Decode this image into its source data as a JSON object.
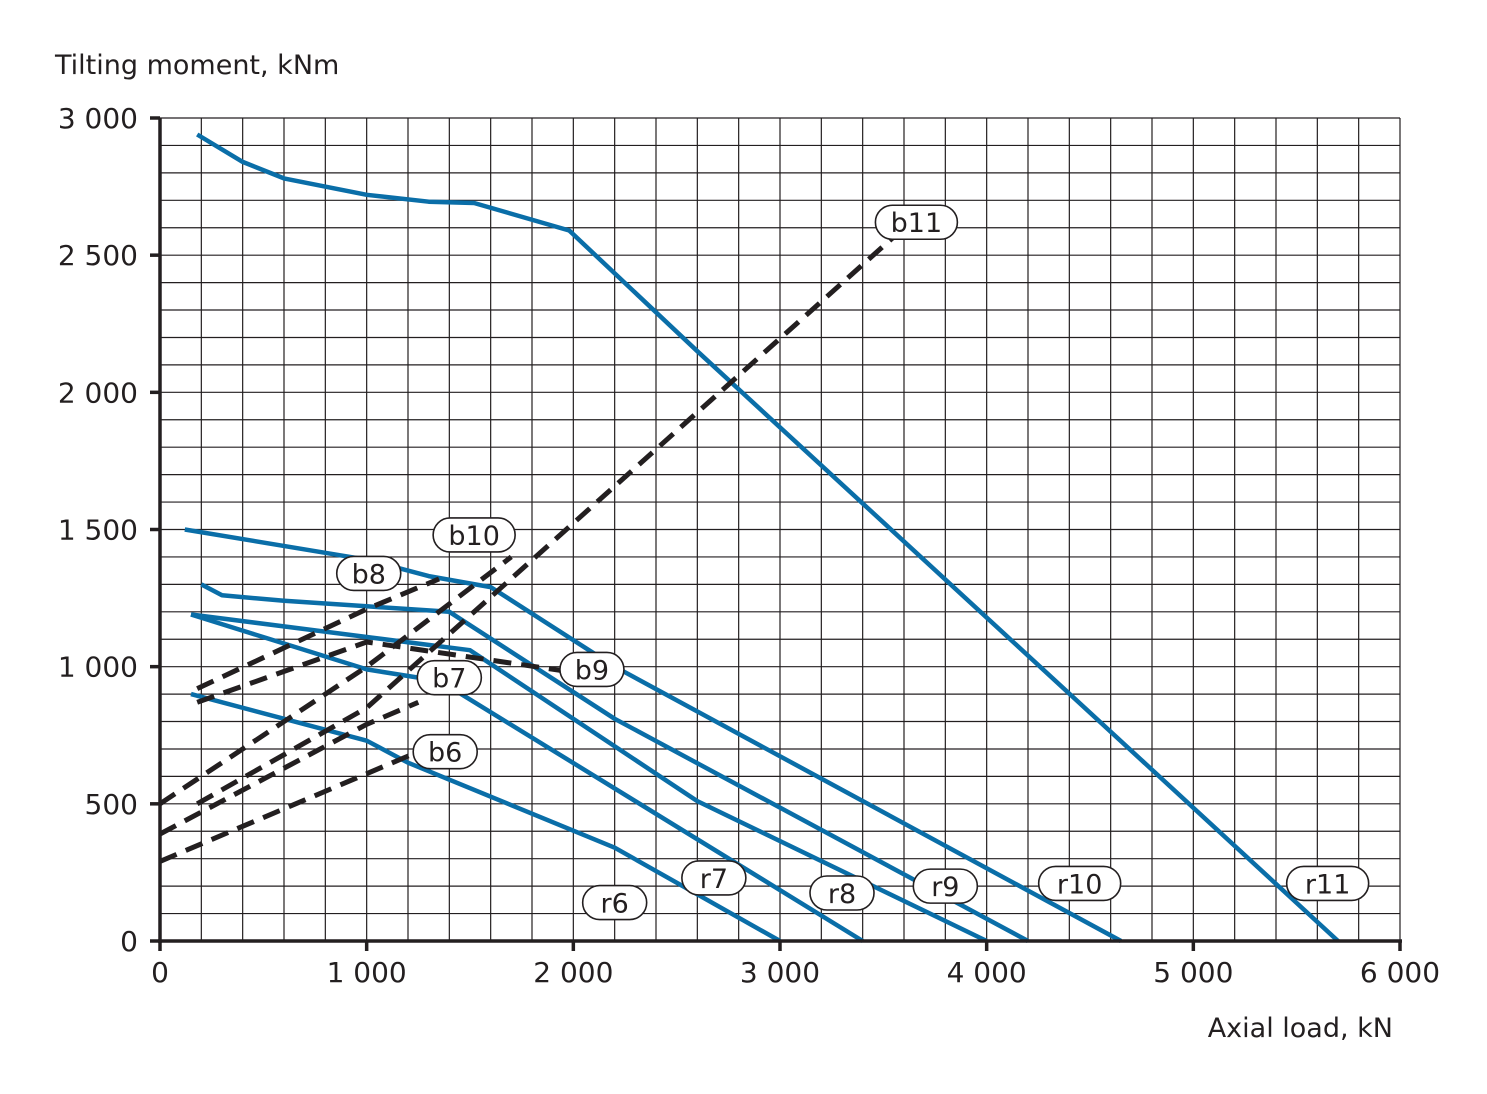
{
  "chart_data": {
    "type": "line",
    "xlabel": "Axial load, kN",
    "ylabel": "Tilting moment, kNm",
    "xlim": [
      0,
      6000
    ],
    "ylim": [
      0,
      3000
    ],
    "x_ticks": [
      0,
      1000,
      2000,
      3000,
      4000,
      5000,
      6000
    ],
    "x_tick_labels": [
      "0",
      "1 000",
      "2 000",
      "3 000",
      "4 000",
      "5 000",
      "6 000"
    ],
    "y_ticks": [
      0,
      500,
      1000,
      1500,
      2000,
      2500,
      3000
    ],
    "y_tick_labels": [
      "0",
      "500",
      "1 000",
      "1 500",
      "2 000",
      "2 500",
      "3 000"
    ],
    "grid": true,
    "grid_minor_x": 200,
    "grid_minor_y": 100,
    "colors": {
      "r_series": "#0a6ea8",
      "b_series": "#231f20",
      "axis": "#231f20"
    },
    "series": [
      {
        "name": "r6",
        "style": "solid",
        "x": [
          150,
          1000,
          1200,
          2200,
          3000
        ],
        "y": [
          900,
          730,
          650,
          340,
          0
        ]
      },
      {
        "name": "r7",
        "style": "solid",
        "x": [
          150,
          1000,
          1250,
          1350,
          3400
        ],
        "y": [
          1190,
          990,
          960,
          950,
          0
        ]
      },
      {
        "name": "r8",
        "style": "solid",
        "x": [
          150,
          1500,
          2600,
          4000
        ],
        "y": [
          1190,
          1060,
          510,
          0
        ]
      },
      {
        "name": "r9",
        "style": "solid",
        "x": [
          200,
          300,
          600,
          1000,
          1400,
          2200,
          4200
        ],
        "y": [
          1300,
          1260,
          1240,
          1220,
          1200,
          810,
          0
        ]
      },
      {
        "name": "r10",
        "style": "solid",
        "x": [
          120,
          1000,
          1300,
          1600,
          2200,
          4650
        ],
        "y": [
          1500,
          1390,
          1330,
          1290,
          1000,
          0
        ]
      },
      {
        "name": "r11",
        "style": "solid",
        "x": [
          180,
          400,
          600,
          1000,
          1300,
          1520,
          1980,
          2600,
          5700
        ],
        "y": [
          2940,
          2840,
          2780,
          2720,
          2695,
          2690,
          2590,
          2150,
          0
        ]
      },
      {
        "name": "b6",
        "style": "dashed",
        "x": [
          0,
          1000,
          1250
        ],
        "y": [
          290,
          610,
          690
        ]
      },
      {
        "name": "b7",
        "style": "dashed",
        "x": [
          0,
          1000,
          1250
        ],
        "y": [
          390,
          790,
          870
        ]
      },
      {
        "name": "b8",
        "style": "dashed",
        "x": [
          180,
          1000,
          1350
        ],
        "y": [
          920,
          1210,
          1320
        ]
      },
      {
        "name": "b9",
        "style": "dashed",
        "x": [
          180,
          1000,
          2000
        ],
        "y": [
          870,
          1090,
          980
        ]
      },
      {
        "name": "b10",
        "style": "dashed",
        "x": [
          0,
          1000,
          1700
        ],
        "y": [
          500,
          1000,
          1400
        ]
      },
      {
        "name": "b11",
        "style": "dashed",
        "x": [
          180,
          1000,
          3600
        ],
        "y": [
          500,
          850,
          2600
        ]
      }
    ],
    "curve_labels": [
      {
        "text": "r6",
        "x": 2200,
        "y": 140
      },
      {
        "text": "r7",
        "x": 2680,
        "y": 230
      },
      {
        "text": "r8",
        "x": 3300,
        "y": 175
      },
      {
        "text": "r9",
        "x": 3800,
        "y": 200
      },
      {
        "text": "r10",
        "x": 4450,
        "y": 210
      },
      {
        "text": "r11",
        "x": 5650,
        "y": 210
      },
      {
        "text": "b6",
        "x": 1380,
        "y": 690
      },
      {
        "text": "b7",
        "x": 1400,
        "y": 960
      },
      {
        "text": "b8",
        "x": 1010,
        "y": 1340
      },
      {
        "text": "b9",
        "x": 2090,
        "y": 990
      },
      {
        "text": "b10",
        "x": 1520,
        "y": 1480
      },
      {
        "text": "b11",
        "x": 3660,
        "y": 2620
      }
    ]
  }
}
